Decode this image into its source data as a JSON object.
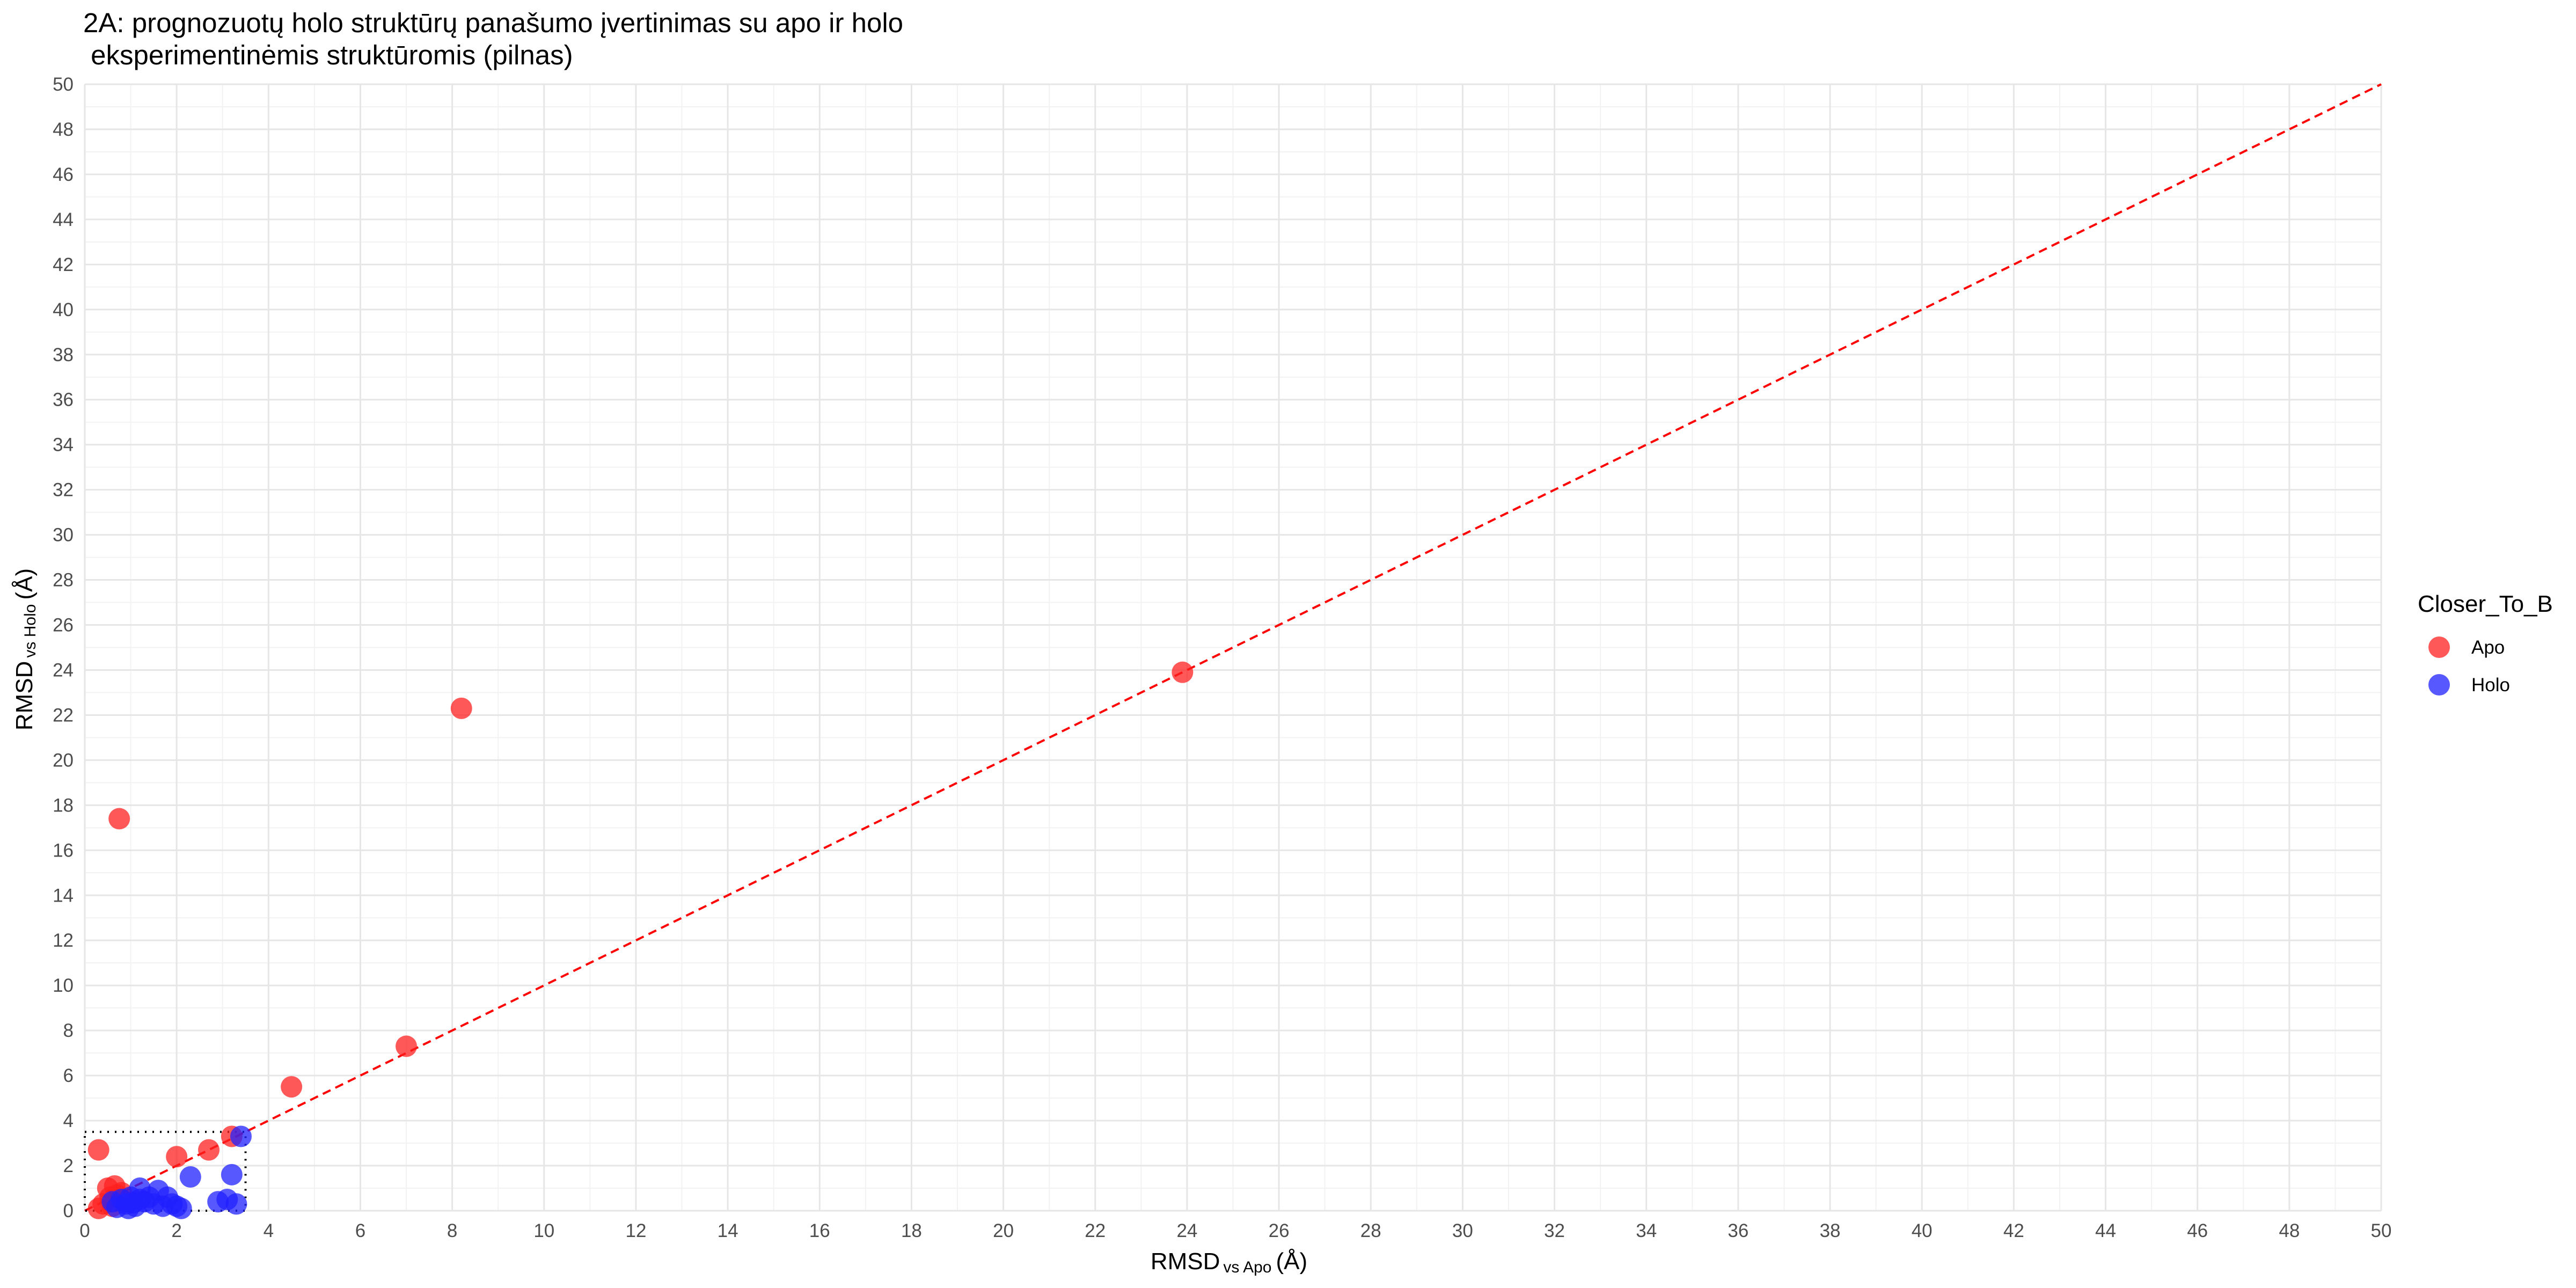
{
  "chart_data": {
    "type": "scatter",
    "title_line1": "2A: prognozuotų holo struktūrų panašumo įvertinimas su apo ir holo",
    "title_line2": " eksperimentinėmis struktūromis (pilnas)",
    "xlabel": {
      "main": "RMSD",
      "sub": "vs Apo",
      "unit": "(Å)"
    },
    "ylabel": {
      "main": "RMSD",
      "sub": "vs Holo",
      "unit": "(Å)"
    },
    "xlim": [
      0,
      50
    ],
    "ylim": [
      0,
      50
    ],
    "ticks": [
      "0",
      "2",
      "4",
      "6",
      "8",
      "10",
      "12",
      "14",
      "16",
      "18",
      "20",
      "22",
      "24",
      "26",
      "28",
      "30",
      "32",
      "34",
      "36",
      "38",
      "40",
      "42",
      "44",
      "46",
      "48",
      "50"
    ],
    "grid": true,
    "reference_line": {
      "from": [
        0,
        0
      ],
      "to": [
        50,
        50
      ],
      "style": "dashed",
      "color": "#ff0000"
    },
    "zoom_box": {
      "x": [
        0,
        3.5
      ],
      "y": [
        0,
        3.5
      ],
      "style": "dotted"
    },
    "legend": {
      "title": "Closer_To_B",
      "position": "right",
      "entries": [
        {
          "label": "Apo",
          "color": "#ff2020"
        },
        {
          "label": "Holo",
          "color": "#2020ff"
        }
      ]
    },
    "series": [
      {
        "name": "Apo",
        "color": "#ff2020",
        "points": [
          [
            0.75,
            17.4
          ],
          [
            8.2,
            22.3
          ],
          [
            23.9,
            23.9
          ],
          [
            7.0,
            7.3
          ],
          [
            4.5,
            5.5
          ],
          [
            0.3,
            2.7
          ],
          [
            2.7,
            2.7
          ],
          [
            3.2,
            3.3
          ],
          [
            2.0,
            2.4
          ],
          [
            0.5,
            1.0
          ],
          [
            0.65,
            1.1
          ],
          [
            0.7,
            0.7
          ],
          [
            0.4,
            0.3
          ],
          [
            0.55,
            0.6
          ],
          [
            0.3,
            0.1
          ],
          [
            0.9,
            0.4
          ],
          [
            0.6,
            0.2
          ],
          [
            0.8,
            0.8
          ]
        ]
      },
      {
        "name": "Holo",
        "color": "#2020ff",
        "points": [
          [
            3.4,
            3.3
          ],
          [
            2.3,
            1.5
          ],
          [
            3.2,
            1.6
          ],
          [
            1.2,
            1.0
          ],
          [
            1.6,
            0.9
          ],
          [
            1.8,
            0.6
          ],
          [
            2.9,
            0.4
          ],
          [
            3.3,
            0.3
          ],
          [
            3.1,
            0.5
          ],
          [
            1.0,
            0.6
          ],
          [
            0.9,
            0.3
          ],
          [
            1.1,
            0.2
          ],
          [
            1.3,
            0.4
          ],
          [
            1.5,
            0.3
          ],
          [
            1.7,
            0.2
          ],
          [
            1.9,
            0.3
          ],
          [
            2.0,
            0.2
          ],
          [
            0.8,
            0.5
          ],
          [
            0.6,
            0.4
          ],
          [
            1.2,
            0.5
          ],
          [
            1.4,
            0.6
          ],
          [
            0.95,
            0.1
          ],
          [
            1.05,
            0.35
          ],
          [
            0.7,
            0.15
          ],
          [
            2.1,
            0.1
          ]
        ]
      }
    ]
  }
}
